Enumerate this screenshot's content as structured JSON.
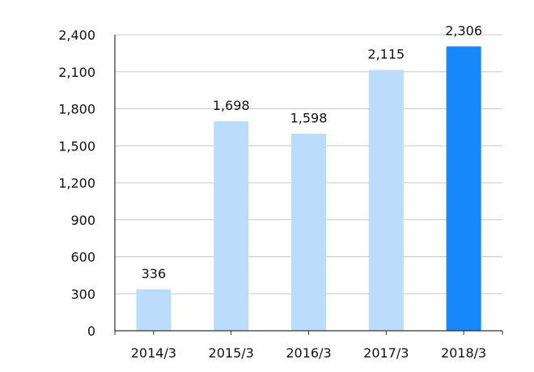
{
  "chart_data": {
    "type": "bar",
    "categories": [
      "2014/3",
      "2015/3",
      "2016/3",
      "2017/3",
      "2018/3"
    ],
    "values": [
      336,
      1698,
      1598,
      2115,
      2306
    ],
    "value_labels": [
      "336",
      "1,698",
      "1,598",
      "2,115",
      "2,306"
    ],
    "y_ticks": [
      0,
      300,
      600,
      900,
      1200,
      1500,
      1800,
      2100,
      2400
    ],
    "y_tick_labels": [
      "0",
      "300",
      "600",
      "900",
      "1,200",
      "1,500",
      "1,800",
      "2,100",
      "2,400"
    ],
    "ylim": [
      0,
      2400
    ],
    "grid": true,
    "title": "",
    "xlabel": "",
    "ylabel": "",
    "colors": {
      "bar": "#bcdcfb",
      "highlight_bar": "#1787fc",
      "grid": "#c8c8c8",
      "axis": "#333333"
    },
    "highlight_index": 4
  }
}
